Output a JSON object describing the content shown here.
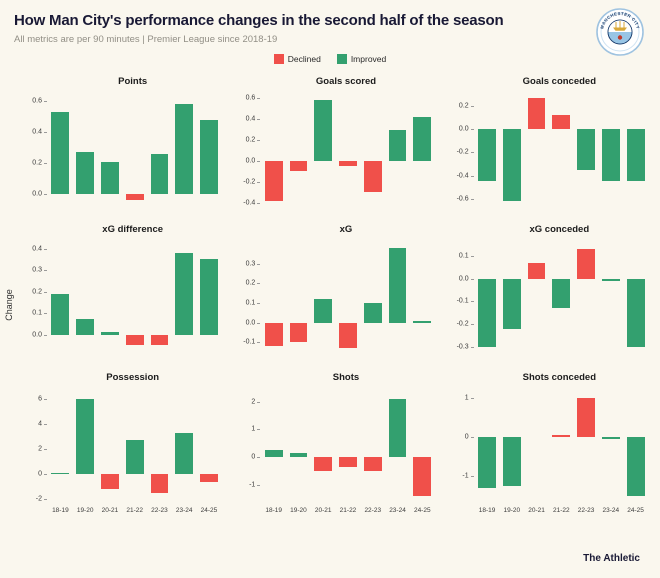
{
  "header": {
    "title": "How Man City's performance changes in the second half of the season",
    "subtitle": "All metrics are per 90 minutes | Premier League since 2018-19"
  },
  "badge": {
    "club": "MANCHESTER CITY"
  },
  "legend": {
    "declined": "Declined",
    "improved": "Improved"
  },
  "footer": {
    "brand": "The Athletic"
  },
  "colors": {
    "background": "#faf7ee",
    "title": "#191935",
    "improved": "#33a06f",
    "declined": "#f0504a"
  },
  "chart_data": {
    "type": "bar",
    "ylabel": "Change",
    "categories": [
      "18-19",
      "19-20",
      "20-21",
      "21-22",
      "22-23",
      "23-24",
      "24-25"
    ],
    "charts": [
      {
        "title": "Points",
        "ylim": [
          -0.09,
          0.66
        ],
        "yticks": [
          "0.6",
          "0.4",
          "0.2",
          "0.0"
        ],
        "values": [
          0.53,
          0.27,
          0.21,
          -0.04,
          0.26,
          0.58,
          0.48
        ],
        "invert": false,
        "xlabels": false
      },
      {
        "title": "Goals scored",
        "ylim": [
          -0.45,
          0.66
        ],
        "yticks": [
          "0.6",
          "0.4",
          "0.2",
          "0.0",
          "-0.2",
          "-0.4"
        ],
        "values": [
          -0.38,
          -0.1,
          0.58,
          -0.05,
          -0.3,
          0.3,
          0.42
        ],
        "invert": false,
        "xlabels": false
      },
      {
        "title": "Goals conceded",
        "ylim": [
          -0.68,
          0.32
        ],
        "yticks": [
          "0.2",
          "0.0",
          "-0.2",
          "-0.4",
          "-0.6"
        ],
        "values": [
          -0.45,
          -0.62,
          0.27,
          0.12,
          -0.35,
          -0.45,
          -0.45
        ],
        "invert": true,
        "xlabels": false
      },
      {
        "title": "xG difference",
        "ylim": [
          -0.1,
          0.44
        ],
        "yticks": [
          "0.4",
          "0.3",
          "0.2",
          "0.1",
          "0.0"
        ],
        "values": [
          0.19,
          0.07,
          0.01,
          -0.05,
          -0.05,
          0.38,
          0.35
        ],
        "invert": false,
        "xlabels": false
      },
      {
        "title": "xG",
        "ylim": [
          -0.17,
          0.42
        ],
        "yticks": [
          "0.3",
          "0.2",
          "0.1",
          "0.0",
          "-0.1"
        ],
        "values": [
          -0.12,
          -0.1,
          0.12,
          -0.13,
          0.1,
          0.38,
          0.01
        ],
        "invert": false,
        "xlabels": false
      },
      {
        "title": "xG conceded",
        "ylim": [
          -0.34,
          0.17
        ],
        "yticks": [
          "0.1",
          "0.0",
          "-0.1",
          "-0.2",
          "-0.3"
        ],
        "values": [
          -0.3,
          -0.22,
          0.07,
          -0.13,
          0.13,
          -0.01,
          -0.3
        ],
        "invert": true,
        "xlabels": false
      },
      {
        "title": "Possession",
        "ylim": [
          -2.4,
          6.9
        ],
        "yticks": [
          "6",
          "4",
          "2",
          "0",
          "-2"
        ],
        "values": [
          0.1,
          6.0,
          -1.2,
          2.7,
          -1.5,
          3.3,
          -0.6
        ],
        "invert": false,
        "xlabels": true
      },
      {
        "title": "Shots",
        "ylim": [
          -1.7,
          2.5
        ],
        "yticks": [
          "2",
          "1",
          "0",
          "-1"
        ],
        "values": [
          0.25,
          0.15,
          -0.5,
          -0.35,
          -0.5,
          2.1,
          -1.4
        ],
        "invert": false,
        "xlabels": true
      },
      {
        "title": "Shots conceded",
        "ylim": [
          -1.7,
          1.25
        ],
        "yticks": [
          "1",
          "0",
          "-1"
        ],
        "values": [
          -1.3,
          -1.25,
          0.0,
          0.05,
          1.0,
          -0.05,
          -1.5
        ],
        "invert": true,
        "xlabels": true
      }
    ]
  }
}
